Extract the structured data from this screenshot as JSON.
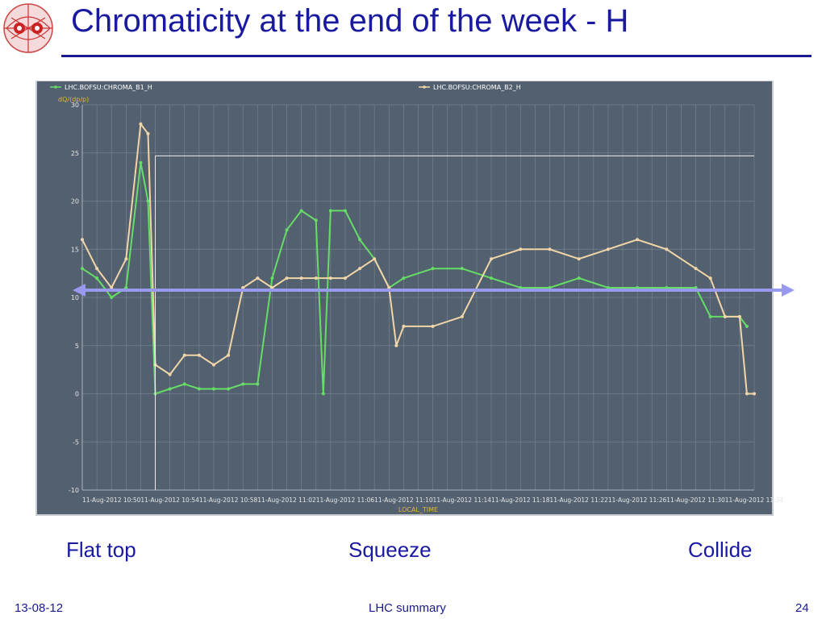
{
  "slide": {
    "title": "Chromaticity at the end of the week - H",
    "captions": [
      "Flat top",
      "Squeeze",
      "Collide"
    ],
    "footer_date": "13-08-12",
    "footer_center": "LHC summary",
    "page_number": "24"
  },
  "colors": {
    "title": "#1a1aa0",
    "plot_bg": "#52606f",
    "series_b1": "#66dd66",
    "series_b2": "#f2d6a8",
    "arrow": "#9999ee",
    "axis_text": "#e8b830"
  },
  "chart_data": {
    "type": "line",
    "grid": true,
    "legend_position": "top",
    "ylabel": "dQ/(dp/p)",
    "xlabel": "LOCAL_TIME",
    "ylim": [
      -10,
      30
    ],
    "yticks": [
      -10,
      -5,
      0,
      5,
      10,
      15,
      20,
      25,
      30
    ],
    "xlim": [
      "11-Aug-2012 10:48",
      "11-Aug-2012 11:34"
    ],
    "xtick_labels": [
      "11-Aug-2012 10:50",
      "11-Aug-2012 10:54",
      "11-Aug-2012 10:58",
      "11-Aug-2012 11:02",
      "11-Aug-2012 11:06",
      "11-Aug-2012 11:10",
      "11-Aug-2012 11:14",
      "11-Aug-2012 11:18",
      "11-Aug-2012 11:22",
      "11-Aug-2012 11:26",
      "11-Aug-2012 11:30",
      "11-Aug-2012 11:34"
    ],
    "reference_lines": {
      "horizontal_y": 24.7,
      "vertical_x": "11-Aug-2012 10:53"
    },
    "series": [
      {
        "name": "LHC.BOFSU:CHROMA_B1_H",
        "x": [
          "10:48",
          "10:49",
          "10:50",
          "10:51",
          "10:52",
          "10:52.5",
          "10:53",
          "10:54",
          "10:55",
          "10:56",
          "10:57",
          "10:58",
          "10:59",
          "11:00",
          "11:01",
          "11:02",
          "11:03",
          "11:04",
          "11:04.5",
          "11:05",
          "11:06",
          "11:07",
          "11:08",
          "11:09",
          "11:10",
          "11:12",
          "11:14",
          "11:16",
          "11:18",
          "11:20",
          "11:22",
          "11:24",
          "11:26",
          "11:28",
          "11:30",
          "11:31",
          "11:32",
          "11:33",
          "11:33.5"
        ],
        "values": [
          13,
          12,
          10,
          11,
          24,
          20,
          0,
          0.5,
          1,
          0.5,
          0.5,
          0.5,
          1,
          1,
          12,
          17,
          19,
          18,
          0,
          19,
          19,
          16,
          14,
          11,
          12,
          13,
          13,
          12,
          11,
          11,
          12,
          11,
          11,
          11,
          11,
          8,
          8,
          8,
          7
        ]
      },
      {
        "name": "LHC.BOFSU:CHROMA_B2_H",
        "x": [
          "10:48",
          "10:49",
          "10:50",
          "10:51",
          "10:52",
          "10:52.5",
          "10:53",
          "10:54",
          "10:55",
          "10:56",
          "10:57",
          "10:58",
          "10:59",
          "11:00",
          "11:01",
          "11:02",
          "11:03",
          "11:04",
          "11:05",
          "11:06",
          "11:07",
          "11:08",
          "11:09",
          "11:09.5",
          "11:10",
          "11:12",
          "11:14",
          "11:16",
          "11:18",
          "11:20",
          "11:22",
          "11:24",
          "11:26",
          "11:28",
          "11:30",
          "11:31",
          "11:32",
          "11:33",
          "11:33.5",
          "11:34"
        ],
        "values": [
          16,
          13,
          11,
          14,
          28,
          27,
          3,
          2,
          4,
          4,
          3,
          4,
          11,
          12,
          11,
          12,
          12,
          12,
          12,
          12,
          13,
          14,
          11,
          5,
          7,
          7,
          8,
          14,
          15,
          15,
          14,
          15,
          16,
          15,
          13,
          12,
          8,
          8,
          0,
          0
        ]
      }
    ]
  }
}
